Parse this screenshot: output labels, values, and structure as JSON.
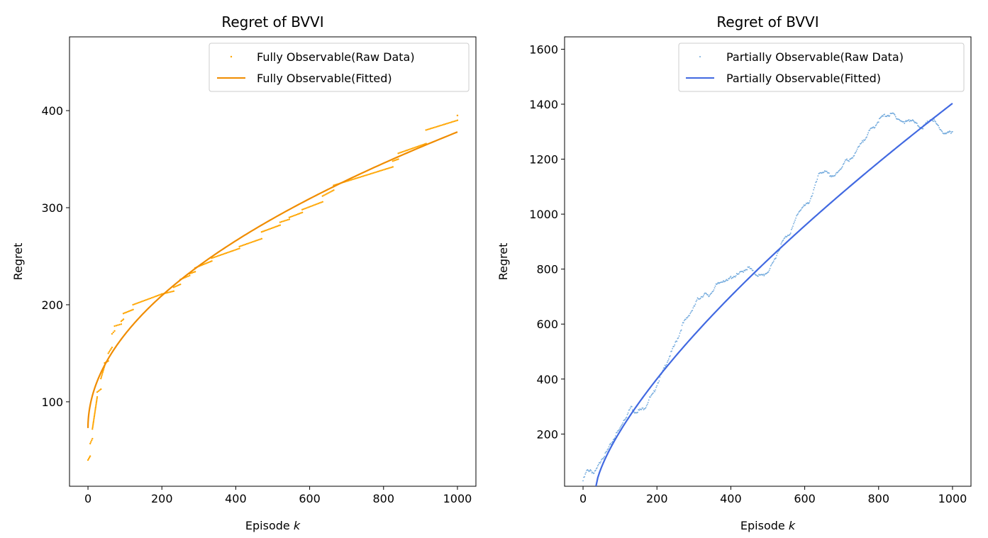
{
  "chart_data": [
    {
      "type": "scatter",
      "title": "Regret of BVVI",
      "xlabel": "Episode",
      "xlabel_var": "k",
      "ylabel": "Regret",
      "xlim": [
        -50,
        1050
      ],
      "ylim": [
        13,
        476
      ],
      "xticks": [
        0,
        200,
        400,
        600,
        800,
        1000
      ],
      "yticks": [
        100,
        200,
        300,
        400
      ],
      "legend_position": "top-right",
      "colors": {
        "raw": "#ffa500",
        "fit": "#f08c00"
      },
      "series": [
        {
          "name": "Fully Observable(Raw Data)",
          "kind": "raw",
          "segments": [
            {
              "x0": 0,
              "y0": 40,
              "x1": 6,
              "y1": 44
            },
            {
              "x0": 6,
              "y0": 57,
              "x1": 12,
              "y1": 62
            },
            {
              "x0": 12,
              "y0": 72,
              "x1": 25,
              "y1": 105
            },
            {
              "x0": 25,
              "y0": 110,
              "x1": 35,
              "y1": 113
            },
            {
              "x0": 35,
              "y0": 124,
              "x1": 45,
              "y1": 137
            },
            {
              "x0": 45,
              "y0": 140,
              "x1": 55,
              "y1": 142
            },
            {
              "x0": 55,
              "y0": 150,
              "x1": 65,
              "y1": 156
            },
            {
              "x0": 65,
              "y0": 170,
              "x1": 72,
              "y1": 173
            },
            {
              "x0": 72,
              "y0": 178,
              "x1": 90,
              "y1": 180
            },
            {
              "x0": 90,
              "y0": 183,
              "x1": 96,
              "y1": 185
            },
            {
              "x0": 96,
              "y0": 191,
              "x1": 122,
              "y1": 195
            },
            {
              "x0": 122,
              "y0": 200,
              "x1": 200,
              "y1": 211
            },
            {
              "x0": 200,
              "y0": 211,
              "x1": 232,
              "y1": 214
            },
            {
              "x0": 232,
              "y0": 218,
              "x1": 250,
              "y1": 221
            },
            {
              "x0": 250,
              "y0": 226,
              "x1": 275,
              "y1": 230
            },
            {
              "x0": 275,
              "y0": 232,
              "x1": 290,
              "y1": 234
            },
            {
              "x0": 290,
              "y0": 238,
              "x1": 335,
              "y1": 245
            },
            {
              "x0": 335,
              "y0": 248,
              "x1": 410,
              "y1": 258
            },
            {
              "x0": 410,
              "y0": 260,
              "x1": 470,
              "y1": 268
            },
            {
              "x0": 470,
              "y0": 275,
              "x1": 520,
              "y1": 282
            },
            {
              "x0": 520,
              "y0": 285,
              "x1": 545,
              "y1": 288
            },
            {
              "x0": 545,
              "y0": 290,
              "x1": 580,
              "y1": 295
            },
            {
              "x0": 580,
              "y0": 298,
              "x1": 635,
              "y1": 306
            },
            {
              "x0": 635,
              "y0": 312,
              "x1": 665,
              "y1": 318
            },
            {
              "x0": 665,
              "y0": 323,
              "x1": 825,
              "y1": 342
            },
            {
              "x0": 825,
              "y0": 348,
              "x1": 840,
              "y1": 350
            },
            {
              "x0": 840,
              "y0": 356,
              "x1": 915,
              "y1": 366
            },
            {
              "x0": 915,
              "y0": 380,
              "x1": 1000,
              "y1": 390
            },
            {
              "x0": 1000,
              "y0": 395,
              "x1": 1000,
              "y1": 395
            }
          ]
        },
        {
          "name": "Fully Observable(Fitted)",
          "kind": "fit",
          "formula": "sqrt",
          "x": [
            0,
            1000
          ],
          "y_at_x0": 73,
          "y_at_x1": 378
        }
      ]
    },
    {
      "type": "scatter",
      "title": "Regret of BVVI",
      "xlabel": "Episode",
      "xlabel_var": "k",
      "ylabel": "Regret",
      "xlim": [
        -50,
        1050
      ],
      "ylim": [
        10,
        1645
      ],
      "xticks": [
        0,
        200,
        400,
        600,
        800,
        1000
      ],
      "yticks": [
        200,
        400,
        600,
        800,
        1000,
        1200,
        1400,
        1600
      ],
      "legend_position": "top-right",
      "colors": {
        "raw": "#6fa8dc",
        "fit": "#4169e1"
      },
      "series": [
        {
          "name": "Partially Observable(Raw Data)",
          "kind": "raw",
          "points": [
            [
              0,
              30
            ],
            [
              10,
              65
            ],
            [
              20,
              70
            ],
            [
              30,
              55
            ],
            [
              40,
              80
            ],
            [
              50,
              110
            ],
            [
              60,
              125
            ],
            [
              70,
              150
            ],
            [
              80,
              175
            ],
            [
              90,
              200
            ],
            [
              100,
              220
            ],
            [
              110,
              250
            ],
            [
              120,
              270
            ],
            [
              130,
              300
            ],
            [
              140,
              280
            ],
            [
              150,
              285
            ],
            [
              160,
              290
            ],
            [
              170,
              300
            ],
            [
              180,
              330
            ],
            [
              190,
              345
            ],
            [
              200,
              380
            ],
            [
              210,
              410
            ],
            [
              220,
              440
            ],
            [
              230,
              470
            ],
            [
              240,
              500
            ],
            [
              250,
              530
            ],
            [
              260,
              560
            ],
            [
              270,
              600
            ],
            [
              280,
              620
            ],
            [
              290,
              640
            ],
            [
              300,
              660
            ],
            [
              310,
              690
            ],
            [
              320,
              700
            ],
            [
              330,
              710
            ],
            [
              340,
              700
            ],
            [
              350,
              720
            ],
            [
              360,
              740
            ],
            [
              370,
              750
            ],
            [
              380,
              760
            ],
            [
              390,
              755
            ],
            [
              400,
              770
            ],
            [
              410,
              775
            ],
            [
              420,
              780
            ],
            [
              430,
              790
            ],
            [
              440,
              800
            ],
            [
              450,
              805
            ],
            [
              460,
              790
            ],
            [
              470,
              780
            ],
            [
              480,
              775
            ],
            [
              490,
              780
            ],
            [
              500,
              790
            ],
            [
              510,
              810
            ],
            [
              520,
              840
            ],
            [
              530,
              870
            ],
            [
              540,
              900
            ],
            [
              550,
              920
            ],
            [
              560,
              930
            ],
            [
              570,
              960
            ],
            [
              580,
              1000
            ],
            [
              590,
              1020
            ],
            [
              600,
              1030
            ],
            [
              610,
              1040
            ],
            [
              620,
              1070
            ],
            [
              630,
              1110
            ],
            [
              640,
              1150
            ],
            [
              650,
              1155
            ],
            [
              660,
              1150
            ],
            [
              670,
              1140
            ],
            [
              680,
              1140
            ],
            [
              690,
              1150
            ],
            [
              700,
              1170
            ],
            [
              710,
              1200
            ],
            [
              720,
              1190
            ],
            [
              730,
              1210
            ],
            [
              740,
              1230
            ],
            [
              750,
              1250
            ],
            [
              760,
              1270
            ],
            [
              770,
              1290
            ],
            [
              780,
              1310
            ],
            [
              790,
              1320
            ],
            [
              800,
              1340
            ],
            [
              810,
              1355
            ],
            [
              820,
              1360
            ],
            [
              830,
              1360
            ],
            [
              840,
              1365
            ],
            [
              850,
              1350
            ],
            [
              860,
              1340
            ],
            [
              870,
              1330
            ],
            [
              880,
              1345
            ],
            [
              890,
              1340
            ],
            [
              900,
              1330
            ],
            [
              910,
              1320
            ],
            [
              920,
              1315
            ],
            [
              930,
              1330
            ],
            [
              940,
              1345
            ],
            [
              950,
              1340
            ],
            [
              960,
              1320
            ],
            [
              970,
              1305
            ],
            [
              980,
              1290
            ],
            [
              990,
              1295
            ],
            [
              1000,
              1300
            ]
          ]
        },
        {
          "name": "Partially Observable(Fitted)",
          "kind": "fit",
          "formula": "power",
          "x": [
            35,
            1000
          ],
          "y_at_x0": 10,
          "y_at_x1": 1403,
          "exponent": 0.72
        }
      ]
    }
  ]
}
